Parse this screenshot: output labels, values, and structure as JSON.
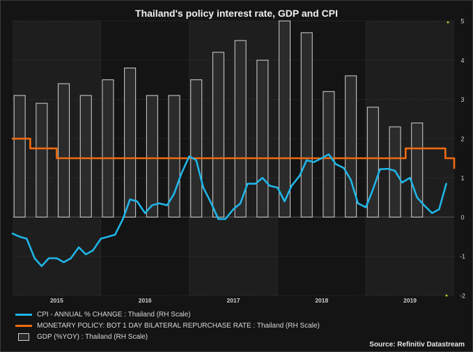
{
  "title": "Thailand's policy interest rate, GDP and CPI",
  "source": "Source: Refinitiv Datastream",
  "colors": {
    "background": "#141414",
    "band": "#1e1e1e",
    "grid": "#3c3c3c",
    "bar_fill": "#2b2b2b",
    "bar_edge": "#d4d4d4",
    "cpi": "#1fb6e8",
    "policy": "#f06b0f"
  },
  "legend": [
    {
      "label": "CPI - ANNUAL % CHANGE : Thailand (RH Scale)",
      "kind": "line",
      "color": "#1fb6e8"
    },
    {
      "label": "MONETARY POLICY: BOT 1 DAY BILATERAL REPURCHASE RATE : Thailand (RH Scale)",
      "kind": "line",
      "color": "#f06b0f"
    },
    {
      "label": "GDP (%YOY) : Thailand (RH Scale)",
      "kind": "box",
      "color": "#2b2b2b"
    }
  ],
  "chart_data": {
    "type": "bar",
    "x_axis": {
      "labels": [
        "2015",
        "2016",
        "2017",
        "2018",
        "2019"
      ],
      "start": 2014.5,
      "end": 2019.5
    },
    "y_axis": {
      "side": "right",
      "range": [
        -2,
        5
      ],
      "ticks": [
        "-2",
        "-1",
        "0",
        "1",
        "2",
        "3",
        "4",
        "5"
      ]
    },
    "grid": true,
    "alternating_year_bands": true,
    "series": [
      {
        "name": "GDP (%YOY) : Thailand (RH Scale)",
        "type": "bar",
        "quarters": [
          "2014Q3",
          "2014Q4",
          "2015Q1",
          "2015Q2",
          "2015Q3",
          "2015Q4",
          "2016Q1",
          "2016Q2",
          "2016Q3",
          "2016Q4",
          "2017Q1",
          "2017Q2",
          "2017Q3",
          "2017Q4",
          "2018Q1",
          "2018Q2",
          "2018Q3",
          "2018Q4",
          "2019Q1",
          "2019Q2"
        ],
        "x": [
          2014.58,
          2014.83,
          2015.08,
          2015.33,
          2015.58,
          2015.83,
          2016.08,
          2016.33,
          2016.58,
          2016.83,
          2017.08,
          2017.33,
          2017.58,
          2017.83,
          2018.08,
          2018.33,
          2018.58,
          2018.83,
          2019.08,
          2019.33
        ],
        "values": [
          3.1,
          2.9,
          3.4,
          3.1,
          3.5,
          3.8,
          3.1,
          3.1,
          3.5,
          4.2,
          4.5,
          4.0,
          5.0,
          4.7,
          3.2,
          3.6,
          2.8,
          2.3,
          2.4,
          null
        ]
      },
      {
        "name": "CPI - ANNUAL % CHANGE : Thailand (RH Scale)",
        "type": "line",
        "x": [
          2014.5,
          2014.58,
          2014.66,
          2014.75,
          2014.83,
          2014.91,
          2015.0,
          2015.08,
          2015.16,
          2015.25,
          2015.33,
          2015.41,
          2015.5,
          2015.58,
          2015.66,
          2015.75,
          2015.83,
          2015.91,
          2016.0,
          2016.08,
          2016.16,
          2016.25,
          2016.33,
          2016.41,
          2016.5,
          2016.58,
          2016.66,
          2016.75,
          2016.83,
          2016.91,
          2017.0,
          2017.08,
          2017.16,
          2017.25,
          2017.33,
          2017.41,
          2017.5,
          2017.58,
          2017.66,
          2017.75,
          2017.83,
          2017.91,
          2018.0,
          2018.08,
          2018.16,
          2018.25,
          2018.33,
          2018.41,
          2018.5,
          2018.58,
          2018.66,
          2018.75,
          2018.83,
          2018.91,
          2019.0,
          2019.08,
          2019.16,
          2019.25,
          2019.33,
          2019.41
        ],
        "values": [
          -0.42,
          -0.5,
          -0.55,
          -1.05,
          -1.25,
          -1.05,
          -1.05,
          -1.15,
          -1.05,
          -0.77,
          -0.95,
          -0.85,
          -0.55,
          -0.5,
          -0.45,
          -0.05,
          0.45,
          0.4,
          0.1,
          0.3,
          0.35,
          0.3,
          0.6,
          1.1,
          1.55,
          1.45,
          0.75,
          0.35,
          -0.05,
          -0.05,
          0.2,
          0.35,
          0.85,
          0.85,
          1.0,
          0.8,
          0.75,
          0.4,
          0.8,
          1.05,
          1.45,
          1.4,
          1.5,
          1.6,
          1.35,
          1.25,
          0.95,
          0.35,
          0.25,
          0.7,
          1.22,
          1.23,
          1.18,
          0.88,
          1.0,
          0.5,
          0.3,
          0.1,
          0.2,
          0.85
        ]
      },
      {
        "name": "MONETARY POLICY: BOT 1 DAY BILATERAL REPURCHASE RATE : Thailand (RH Scale)",
        "type": "line",
        "step": true,
        "x": [
          2014.5,
          2014.6,
          2014.7,
          2015.0,
          2015.1,
          2015.2,
          2015.3,
          2016.0,
          2017.0,
          2018.0,
          2018.5,
          2018.95,
          2019.0,
          2019.1,
          2019.35,
          2019.4,
          2019.5
        ],
        "values": [
          2.0,
          2.0,
          1.75,
          1.5,
          1.5,
          1.5,
          1.5,
          1.5,
          1.5,
          1.5,
          1.5,
          1.75,
          1.75,
          1.75,
          1.75,
          1.5,
          1.25
        ]
      }
    ]
  }
}
